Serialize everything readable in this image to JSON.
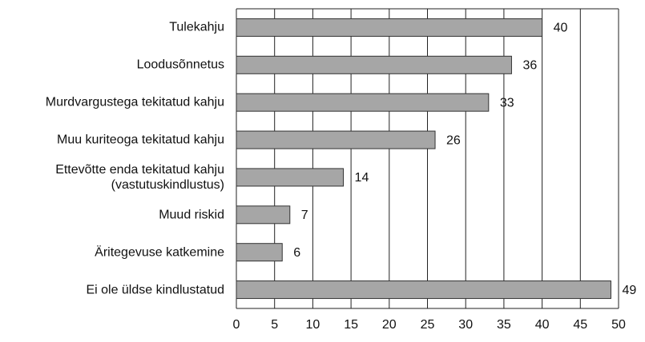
{
  "chart_data": {
    "type": "bar",
    "orientation": "horizontal",
    "categories": [
      "Tulekahju",
      "Loodusõnnetus",
      "Murdvargustega tekitatud kahju",
      "Muu kuriteoga tekitatud kahju",
      "Ettevõtte enda tekitatud kahju\n(vastutuskindlustus)",
      "Muud riskid",
      "Äritegevuse katkemine",
      "Ei ole üldse kindlustatud"
    ],
    "values": [
      40,
      36,
      33,
      26,
      14,
      7,
      6,
      49
    ],
    "color": "#a6a6a6",
    "xlim": [
      0,
      50
    ],
    "xticks": [
      0,
      5,
      10,
      15,
      20,
      25,
      30,
      35,
      40,
      45,
      50
    ],
    "grid": true
  }
}
